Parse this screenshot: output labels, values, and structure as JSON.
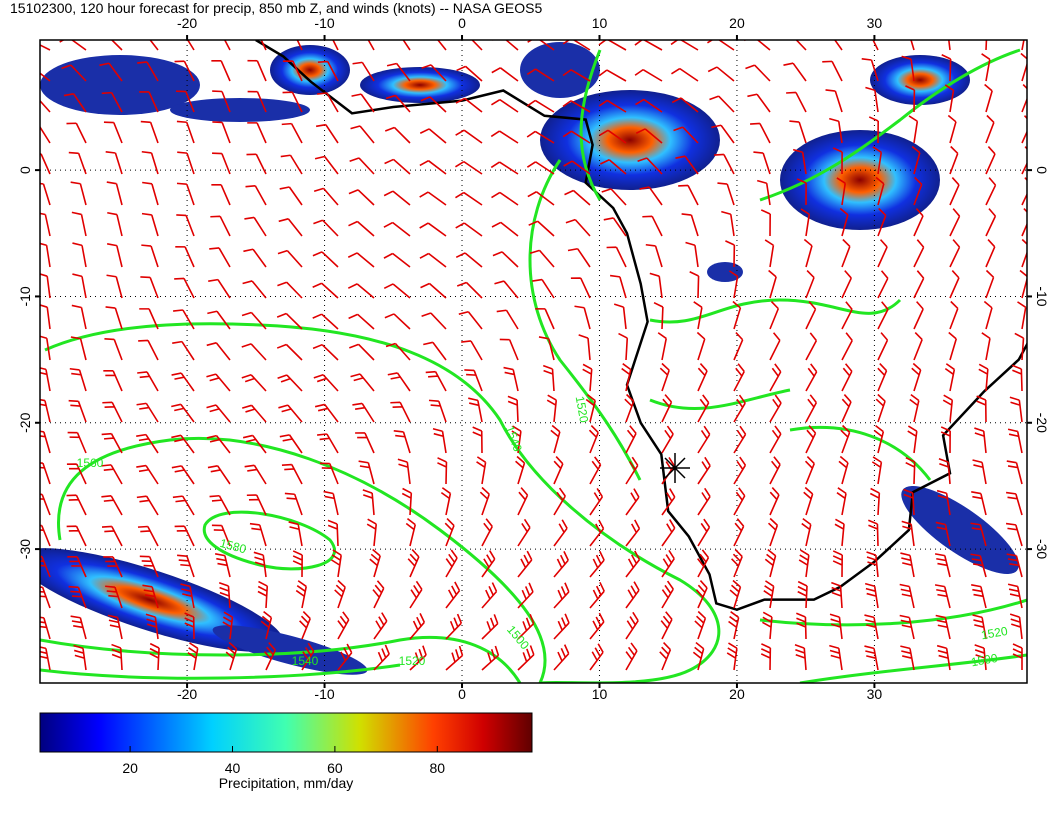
{
  "map": {
    "title": "15102300, 120 hour forecast for precip, 850 mb Z, and winds (knots) -- NASA GEOS5",
    "xlim": [
      -30.7,
      41.1
    ],
    "ylim": [
      -40.6,
      10.3
    ],
    "lon_ticks": [
      -20,
      -10,
      0,
      10,
      20,
      30
    ],
    "lat_ticks": [
      0,
      -10,
      -20,
      -30
    ],
    "contour_labels": [
      "1520",
      "1540",
      "1560",
      "1580",
      "1540",
      "1520",
      "1500",
      "1520",
      "1500"
    ],
    "colorbar": {
      "label": "Precipitation, mm/day",
      "range": [
        2.4,
        98.5
      ],
      "ticks": [
        20,
        40,
        60,
        80
      ]
    }
  }
}
